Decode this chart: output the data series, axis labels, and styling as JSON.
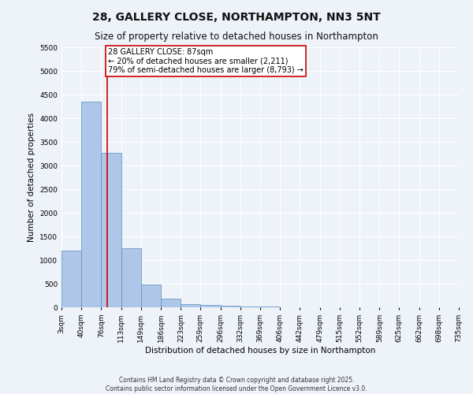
{
  "title": "28, GALLERY CLOSE, NORTHAMPTON, NN3 5NT",
  "subtitle": "Size of property relative to detached houses in Northampton",
  "xlabel": "Distribution of detached houses by size in Northampton",
  "ylabel": "Number of detached properties",
  "bar_edges": [
    3,
    40,
    76,
    113,
    149,
    186,
    223,
    259,
    296,
    332,
    369,
    406,
    442,
    479,
    515,
    552,
    589,
    625,
    662,
    698,
    735
  ],
  "bar_heights": [
    1200,
    4350,
    3275,
    1250,
    490,
    185,
    75,
    45,
    35,
    20,
    10,
    5,
    5,
    3,
    2,
    2,
    1,
    1,
    1,
    1
  ],
  "bar_color": "#aec6e8",
  "bar_edge_color": "#5a8fc0",
  "vline_x": 87,
  "vline_color": "#cc0000",
  "annotation_text": "28 GALLERY CLOSE: 87sqm\n← 20% of detached houses are smaller (2,211)\n79% of semi-detached houses are larger (8,793) →",
  "annotation_box_color": "#ffffff",
  "annotation_box_edge": "#cc0000",
  "ylim": [
    0,
    5500
  ],
  "yticks": [
    0,
    500,
    1000,
    1500,
    2000,
    2500,
    3000,
    3500,
    4000,
    4500,
    5000,
    5500
  ],
  "background_color": "#eef2f9",
  "grid_color": "#ffffff",
  "footer1": "Contains HM Land Registry data © Crown copyright and database right 2025.",
  "footer2": "Contains public sector information licensed under the Open Government Licence v3.0.",
  "title_fontsize": 10,
  "subtitle_fontsize": 8.5,
  "label_fontsize": 7.5,
  "tick_fontsize": 6.5,
  "ylabel_fontsize": 7.5,
  "annotation_fontsize": 7,
  "footer_fontsize": 5.5
}
